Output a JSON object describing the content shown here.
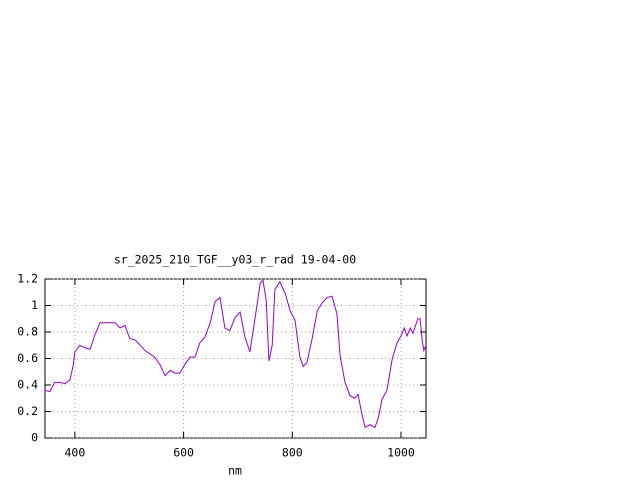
{
  "chart_data": {
    "type": "line",
    "title": "sr_2025_210_TGF__y03_r_rad 19-04-00",
    "x_label": "nm",
    "x": [
      345,
      354,
      363,
      373,
      382,
      391,
      397,
      400,
      409,
      419,
      428,
      437,
      446,
      465,
      474,
      483,
      492,
      501,
      511,
      529,
      547,
      557,
      566,
      575,
      584,
      593,
      603,
      612,
      621,
      630,
      639,
      649,
      658,
      667,
      676,
      685,
      695,
      704,
      713,
      722,
      731,
      741,
      746,
      752,
      757,
      763,
      768,
      777,
      787,
      796,
      805,
      814,
      820,
      827,
      836,
      846,
      855,
      864,
      873,
      882,
      888,
      897,
      906,
      915,
      921,
      927,
      934,
      943,
      952,
      958,
      965,
      974,
      984,
      993,
      1000,
      1006,
      1011,
      1017,
      1022,
      1031,
      1035,
      1039,
      1042,
      1046
    ],
    "values": [
      0.36,
      0.35,
      0.42,
      0.42,
      0.41,
      0.44,
      0.55,
      0.65,
      0.7,
      0.68,
      0.67,
      0.78,
      0.87,
      0.87,
      0.87,
      0.83,
      0.85,
      0.75,
      0.74,
      0.66,
      0.61,
      0.55,
      0.47,
      0.51,
      0.49,
      0.49,
      0.56,
      0.61,
      0.61,
      0.72,
      0.76,
      0.87,
      1.03,
      1.06,
      0.83,
      0.81,
      0.91,
      0.95,
      0.76,
      0.65,
      0.89,
      1.17,
      1.19,
      1.04,
      0.58,
      0.7,
      1.12,
      1.18,
      1.09,
      0.96,
      0.89,
      0.61,
      0.54,
      0.57,
      0.74,
      0.96,
      1.02,
      1.06,
      1.07,
      0.94,
      0.62,
      0.42,
      0.32,
      0.3,
      0.33,
      0.2,
      0.08,
      0.1,
      0.08,
      0.15,
      0.29,
      0.36,
      0.6,
      0.72,
      0.77,
      0.83,
      0.77,
      0.83,
      0.79,
      0.9,
      0.9,
      0.74,
      0.66,
      0.7
    ],
    "color": "#9400d3",
    "xlim": [
      345,
      1046
    ],
    "xticks": [
      400,
      600,
      800,
      1000
    ],
    "ylim": [
      0,
      1.2
    ],
    "yticks": [
      0,
      0.2,
      0.4,
      0.6,
      0.8,
      1,
      1.2
    ],
    "grid": true
  }
}
